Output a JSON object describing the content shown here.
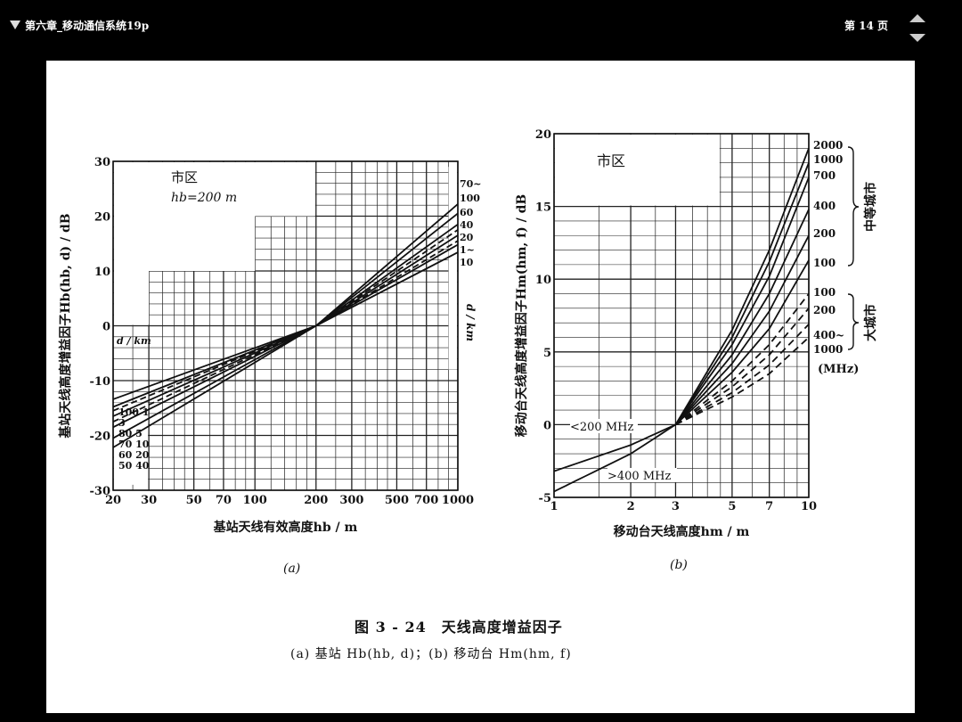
{
  "viewer": {
    "doc_title": "第六章_移动通信系统19p",
    "page_label": "第 14 页"
  },
  "figure": {
    "caption_title": "图 3 - 24　天线高度增益因子",
    "caption_sub": "(a) 基站 Hb(hb, d)；(b) 移动台 Hm(hm, f)",
    "panel_a_label": "(a)",
    "panel_b_label": "(b)"
  },
  "chart_data": [
    {
      "type": "line",
      "panel": "(a)",
      "xlabel": "基站天线有效高度hb / m",
      "ylabel": "基站天线高度增益因子Hb(hb, d) / dB",
      "x_scale": "log",
      "xlim": [
        20,
        1000
      ],
      "ylim": [
        -30,
        30
      ],
      "x_ticks": [
        20,
        30,
        50,
        70,
        100,
        200,
        300,
        500,
        700,
        1000
      ],
      "y_ticks": [
        -30,
        -20,
        -10,
        0,
        10,
        20,
        30
      ],
      "annotation_area": "市区",
      "annotation_hb": "hb=200 m",
      "right_axis_label": "d / km",
      "right_labels": [
        "70~",
        "100",
        "60",
        "40",
        "20",
        "1~",
        "10"
      ],
      "left_axis_label": "d / km",
      "left_labels": [
        "100  1",
        "3",
        "80  5",
        "70 10",
        "60 20",
        "50 40"
      ],
      "series": [
        {
          "x": [
            20,
            200,
            1000
          ],
          "values": [
            -13.4,
            0,
            13.4
          ],
          "style": "solid"
        },
        {
          "x": [
            20,
            200,
            1000
          ],
          "values": [
            -14.8,
            0,
            14.8
          ],
          "style": "solid"
        },
        {
          "x": [
            20,
            200,
            1000
          ],
          "values": [
            -16.5,
            0,
            16.5
          ],
          "style": "solid"
        },
        {
          "x": [
            20,
            200,
            1000
          ],
          "values": [
            -18.5,
            0,
            18.5
          ],
          "style": "solid"
        },
        {
          "x": [
            20,
            200,
            1000
          ],
          "values": [
            -20.5,
            0,
            20.5
          ],
          "style": "solid"
        },
        {
          "x": [
            20,
            200,
            1000
          ],
          "values": [
            -22.2,
            0,
            22.2
          ],
          "style": "solid"
        },
        {
          "x": [
            20,
            200,
            1000
          ],
          "values": [
            -15.5,
            0,
            15.5
          ],
          "style": "dashed"
        },
        {
          "x": [
            20,
            200,
            1000
          ],
          "values": [
            -17.5,
            0,
            17.5
          ],
          "style": "dashed"
        }
      ]
    },
    {
      "type": "line",
      "panel": "(b)",
      "xlabel": "移动台天线高度hm / m",
      "ylabel": "移动台天线高度增益因子Hm(hm, f) / dB",
      "x_scale": "log",
      "xlim": [
        1,
        10
      ],
      "ylim": [
        -5,
        20
      ],
      "x_ticks": [
        1,
        2,
        3,
        5,
        7,
        10
      ],
      "y_ticks": [
        -5,
        0,
        5,
        10,
        15,
        20
      ],
      "annotation_area": "市区",
      "label_lt200": "<200 MHz",
      "label_gt400": ">400 MHz",
      "mid_city": "中等城市",
      "big_city": "大城市",
      "mid_labels": [
        "2000",
        "1000",
        "700",
        "400",
        "200",
        "100"
      ],
      "big_labels": [
        "100",
        "200",
        "400~",
        "1000"
      ],
      "unit_label": "(MHz)",
      "series": [
        {
          "name": "<200 MHz",
          "x": [
            1,
            2,
            3
          ],
          "values": [
            -3.2,
            -1.4,
            0
          ],
          "style": "solid"
        },
        {
          "name": ">400 MHz",
          "x": [
            1,
            2,
            3
          ],
          "values": [
            -4.6,
            -2.0,
            0
          ],
          "style": "solid"
        },
        {
          "name": "2000",
          "x": [
            3,
            5,
            7,
            10
          ],
          "values": [
            0,
            6.5,
            12.0,
            19.0
          ],
          "style": "solid"
        },
        {
          "name": "1000",
          "x": [
            3,
            5,
            7,
            10
          ],
          "values": [
            0,
            6.0,
            11.2,
            18.0
          ],
          "style": "solid"
        },
        {
          "name": "700",
          "x": [
            3,
            5,
            7,
            10
          ],
          "values": [
            0,
            5.5,
            10.2,
            17.0
          ],
          "style": "solid"
        },
        {
          "name": "400",
          "x": [
            3,
            5,
            7,
            10
          ],
          "values": [
            0,
            4.8,
            9.0,
            14.8
          ],
          "style": "solid"
        },
        {
          "name": "200",
          "x": [
            3,
            5,
            7,
            10
          ],
          "values": [
            0,
            4.2,
            7.8,
            13.0
          ],
          "style": "solid"
        },
        {
          "name": "100",
          "x": [
            3,
            5,
            7,
            10
          ],
          "values": [
            0,
            3.6,
            6.6,
            11.3
          ],
          "style": "solid"
        },
        {
          "name": "100",
          "x": [
            3,
            5,
            7,
            10
          ],
          "values": [
            0,
            3.0,
            5.5,
            9.0
          ],
          "style": "dashed"
        },
        {
          "name": "200",
          "x": [
            3,
            5,
            7,
            10
          ],
          "values": [
            0,
            2.6,
            4.8,
            8.0
          ],
          "style": "dashed"
        },
        {
          "name": "400~",
          "x": [
            3,
            5,
            7,
            10
          ],
          "values": [
            0,
            2.2,
            4.1,
            6.9
          ],
          "style": "dashed"
        },
        {
          "name": "1000",
          "x": [
            3,
            5,
            7,
            10
          ],
          "values": [
            0,
            1.9,
            3.5,
            6.0
          ],
          "style": "dashed"
        }
      ]
    }
  ]
}
